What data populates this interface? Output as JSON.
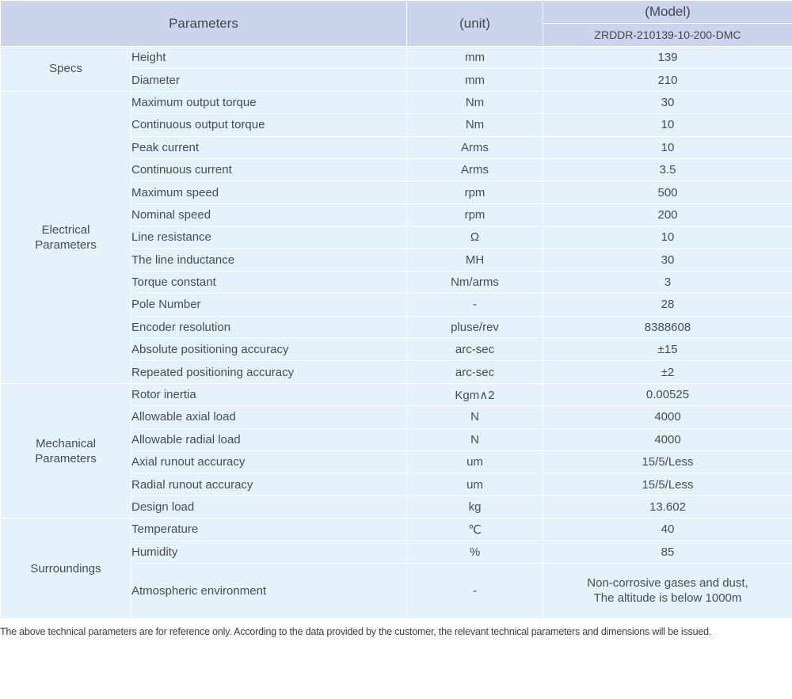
{
  "table": {
    "header": {
      "parameters_label": "Parameters",
      "unit_label": "(unit)",
      "model_label": "(Model)",
      "model_value": "ZRDDR-210139-10-200-DMC"
    },
    "sections": [
      {
        "label": "Specs",
        "rows": [
          {
            "parameter": "Height",
            "unit": "mm",
            "value": "139"
          },
          {
            "parameter": "Diameter",
            "unit": "mm",
            "value": "210"
          }
        ]
      },
      {
        "label": "Electrical Parameters",
        "rows": [
          {
            "parameter": "Maximum output torque",
            "unit": "Nm",
            "value": "30"
          },
          {
            "parameter": "Continuous output torque",
            "unit": "Nm",
            "value": "10"
          },
          {
            "parameter": "Peak current",
            "unit": "Arms",
            "value": "10"
          },
          {
            "parameter": "Continuous current",
            "unit": "Arms",
            "value": "3.5"
          },
          {
            "parameter": "Maximum speed",
            "unit": "rpm",
            "value": "500"
          },
          {
            "parameter": "Nominal speed",
            "unit": "rpm",
            "value": "200"
          },
          {
            "parameter": "Line resistance",
            "unit": "Ω",
            "value": "10"
          },
          {
            "parameter": "The line inductance",
            "unit": "MH",
            "value": "30"
          },
          {
            "parameter": "Torque constant",
            "unit": "Nm/arms",
            "value": "3"
          },
          {
            "parameter": "Pole Number",
            "unit": "-",
            "value": "28"
          },
          {
            "parameter": "Encoder resolution",
            "unit": "pluse/rev",
            "value": "8388608"
          },
          {
            "parameter": "Absolute positioning accuracy",
            "unit": "arc-sec",
            "value": "±15"
          },
          {
            "parameter": "Repeated positioning accuracy",
            "unit": "arc-sec",
            "value": "±2"
          }
        ]
      },
      {
        "label": "Mechanical Parameters",
        "rows": [
          {
            "parameter": "Rotor inertia",
            "unit": "Kgm∧2",
            "value": "0.00525"
          },
          {
            "parameter": "Allowable axial load",
            "unit": "N",
            "value": "4000"
          },
          {
            "parameter": "Allowable radial load",
            "unit": "N",
            "value": "4000"
          },
          {
            "parameter": "Axial runout accuracy",
            "unit": "um",
            "value": "15/5/Less"
          },
          {
            "parameter": "Radial runout accuracy",
            "unit": "um",
            "value": "15/5/Less"
          },
          {
            "parameter": "Design load",
            "unit": "kg",
            "value": "13.602"
          }
        ]
      },
      {
        "label": "Surroundings",
        "rows": [
          {
            "parameter": "Temperature",
            "unit": "℃",
            "value": "40"
          },
          {
            "parameter": "Humidity",
            "unit": "%",
            "value": "85"
          },
          {
            "parameter": "Atmospheric environment",
            "unit": "-",
            "value": "Non-corrosive gases and dust,\nThe altitude is below 1000m",
            "tall": true
          }
        ]
      }
    ]
  },
  "footer": {
    "note": "The above technical parameters are for reference only. According to the data provided by the customer, the relevant technical parameters and dimensions will be issued."
  },
  "colors": {
    "header_bg": "#ccd3ec",
    "row_bg": "#e4f3fb",
    "divider": "#ffffff",
    "text": "#4a4a52",
    "header_text": "#45454d",
    "note_text": "#3c3c40"
  }
}
